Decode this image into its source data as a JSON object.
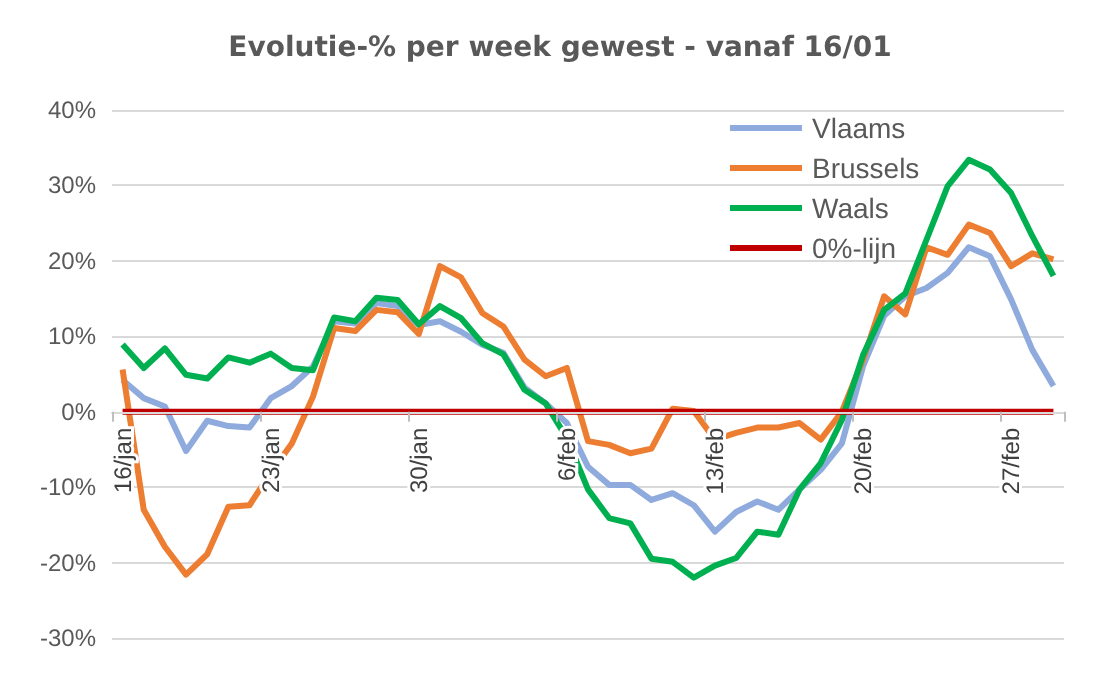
{
  "chart_data": {
    "type": "line",
    "title": "Evolutie-% per week gewest - vanaf 16/01",
    "categories": [
      "16/jan",
      null,
      null,
      null,
      null,
      null,
      null,
      "23/jan",
      null,
      null,
      null,
      null,
      null,
      null,
      "30/jan",
      null,
      null,
      null,
      null,
      null,
      null,
      "6/feb",
      null,
      null,
      null,
      null,
      null,
      null,
      "13/feb",
      null,
      null,
      null,
      null,
      null,
      null,
      "20/feb",
      null,
      null,
      null,
      null,
      null,
      null,
      "27/feb",
      null,
      null
    ],
    "series": [
      {
        "name": "Vlaams",
        "color": "#8faadc",
        "values": [
          4.2,
          1.8,
          0.7,
          -5.2,
          -1.2,
          -1.9,
          -2.1,
          1.8,
          3.4,
          6.0,
          12.0,
          11.7,
          14.4,
          14.0,
          11.5,
          12.0,
          10.6,
          8.9,
          7.8,
          3.2,
          1.1,
          -1.5,
          -7.3,
          -9.7,
          -9.7,
          -11.7,
          -10.8,
          -12.4,
          -15.9,
          -13.3,
          -11.9,
          -13.0,
          -10.3,
          -7.7,
          -4.2,
          6.0,
          12.7,
          15.3,
          16.4,
          18.4,
          21.8,
          20.6,
          14.9,
          8.2,
          3.4
        ]
      },
      {
        "name": "Brussels",
        "color": "#ed7d31",
        "values": [
          5.6,
          -13.0,
          -17.9,
          -21.6,
          -18.9,
          -12.6,
          -12.4,
          -8.1,
          -4.2,
          2.0,
          11.1,
          10.7,
          13.5,
          13.2,
          10.3,
          19.3,
          17.8,
          13.1,
          11.3,
          6.9,
          4.7,
          5.8,
          -3.9,
          -4.4,
          -5.5,
          -4.9,
          0.4,
          0.1,
          -3.7,
          -2.8,
          -2.1,
          -2.1,
          -1.5,
          -3.7,
          0.0,
          6.9,
          15.3,
          12.9,
          21.8,
          20.8,
          24.8,
          23.7,
          19.3,
          21.0,
          20.2
        ]
      },
      {
        "name": "Waals",
        "color": "#00b050",
        "values": [
          8.9,
          5.8,
          8.4,
          4.9,
          4.4,
          7.2,
          6.5,
          7.7,
          5.8,
          5.5,
          12.5,
          12.0,
          15.1,
          14.8,
          11.6,
          14.0,
          12.4,
          9.1,
          7.6,
          2.9,
          1.1,
          -3.5,
          -10.3,
          -14.1,
          -14.8,
          -19.5,
          -19.9,
          -22.0,
          -20.4,
          -19.4,
          -15.9,
          -16.3,
          -10.3,
          -6.8,
          -1.1,
          7.5,
          13.5,
          15.7,
          22.8,
          29.9,
          33.4,
          32.1,
          29.0,
          23.3,
          18.0
        ]
      },
      {
        "name": "0%-lijn",
        "color": "#c00000",
        "values": [
          0,
          0,
          0,
          0,
          0,
          0,
          0,
          0,
          0,
          0,
          0,
          0,
          0,
          0,
          0,
          0,
          0,
          0,
          0,
          0,
          0,
          0,
          0,
          0,
          0,
          0,
          0,
          0,
          0,
          0,
          0,
          0,
          0,
          0,
          0,
          0,
          0,
          0,
          0,
          0,
          0,
          0,
          0,
          0,
          0
        ]
      }
    ],
    "ylim": [
      -30,
      40
    ],
    "yticks": [
      {
        "value": -30,
        "label": "-30%"
      },
      {
        "value": -20,
        "label": "-20%"
      },
      {
        "value": -10,
        "label": "-10%"
      },
      {
        "value": 0,
        "label": "0%"
      },
      {
        "value": 10,
        "label": "10%"
      },
      {
        "value": 20,
        "label": "20%"
      },
      {
        "value": 30,
        "label": "30%"
      },
      {
        "value": 40,
        "label": "40%"
      }
    ],
    "grid": "y",
    "legend": "top right",
    "marker": "none",
    "line_style": "solid"
  }
}
